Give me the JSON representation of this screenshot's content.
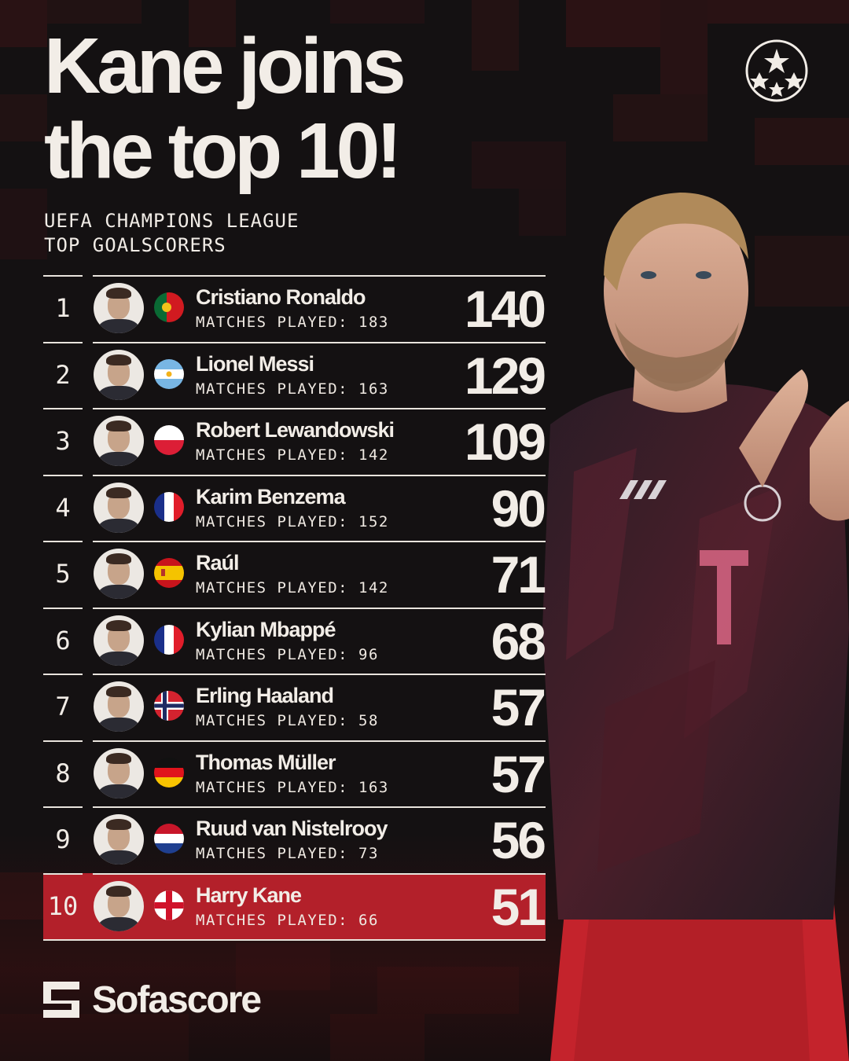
{
  "headline": {
    "line1": "Kane joins",
    "line2": "the top 10!"
  },
  "subtitle": {
    "line1": "UEFA CHAMPIONS LEAGUE",
    "line2": "TOP GOALSCORERS"
  },
  "icons": {
    "competition_logo": "champions-league-starball-icon",
    "brand_logo": "sofascore-logo-icon"
  },
  "brand": {
    "name": "Sofascore"
  },
  "colors": {
    "background": "#141112",
    "highlight_row": "#b3202a",
    "text": "#f2ede7",
    "mosaic": "#3a1416"
  },
  "matches_label": "MATCHES PLAYED:",
  "scorers": [
    {
      "rank": "1",
      "name": "Cristiano Ronaldo",
      "matches": "183",
      "goals": "140",
      "flag": "portugal-flag-icon"
    },
    {
      "rank": "2",
      "name": "Lionel Messi",
      "matches": "163",
      "goals": "129",
      "flag": "argentina-flag-icon"
    },
    {
      "rank": "3",
      "name": "Robert Lewandowski",
      "matches": "142",
      "goals": "109",
      "flag": "poland-flag-icon"
    },
    {
      "rank": "4",
      "name": "Karim Benzema",
      "matches": "152",
      "goals": "90",
      "flag": "france-flag-icon"
    },
    {
      "rank": "5",
      "name": "Raúl",
      "matches": "142",
      "goals": "71",
      "flag": "spain-flag-icon"
    },
    {
      "rank": "6",
      "name": "Kylian Mbappé",
      "matches": "96",
      "goals": "68",
      "flag": "france-flag-icon"
    },
    {
      "rank": "7",
      "name": "Erling Haaland",
      "matches": "58",
      "goals": "57",
      "flag": "norway-flag-icon"
    },
    {
      "rank": "8",
      "name": "Thomas Müller",
      "matches": "163",
      "goals": "57",
      "flag": "germany-flag-icon"
    },
    {
      "rank": "9",
      "name": "Ruud van Nistelrooy",
      "matches": "73",
      "goals": "56",
      "flag": "netherlands-flag-icon"
    },
    {
      "rank": "10",
      "name": "Harry Kane",
      "matches": "66",
      "goals": "51",
      "flag": "england-flag-icon",
      "highlighted": true
    }
  ]
}
